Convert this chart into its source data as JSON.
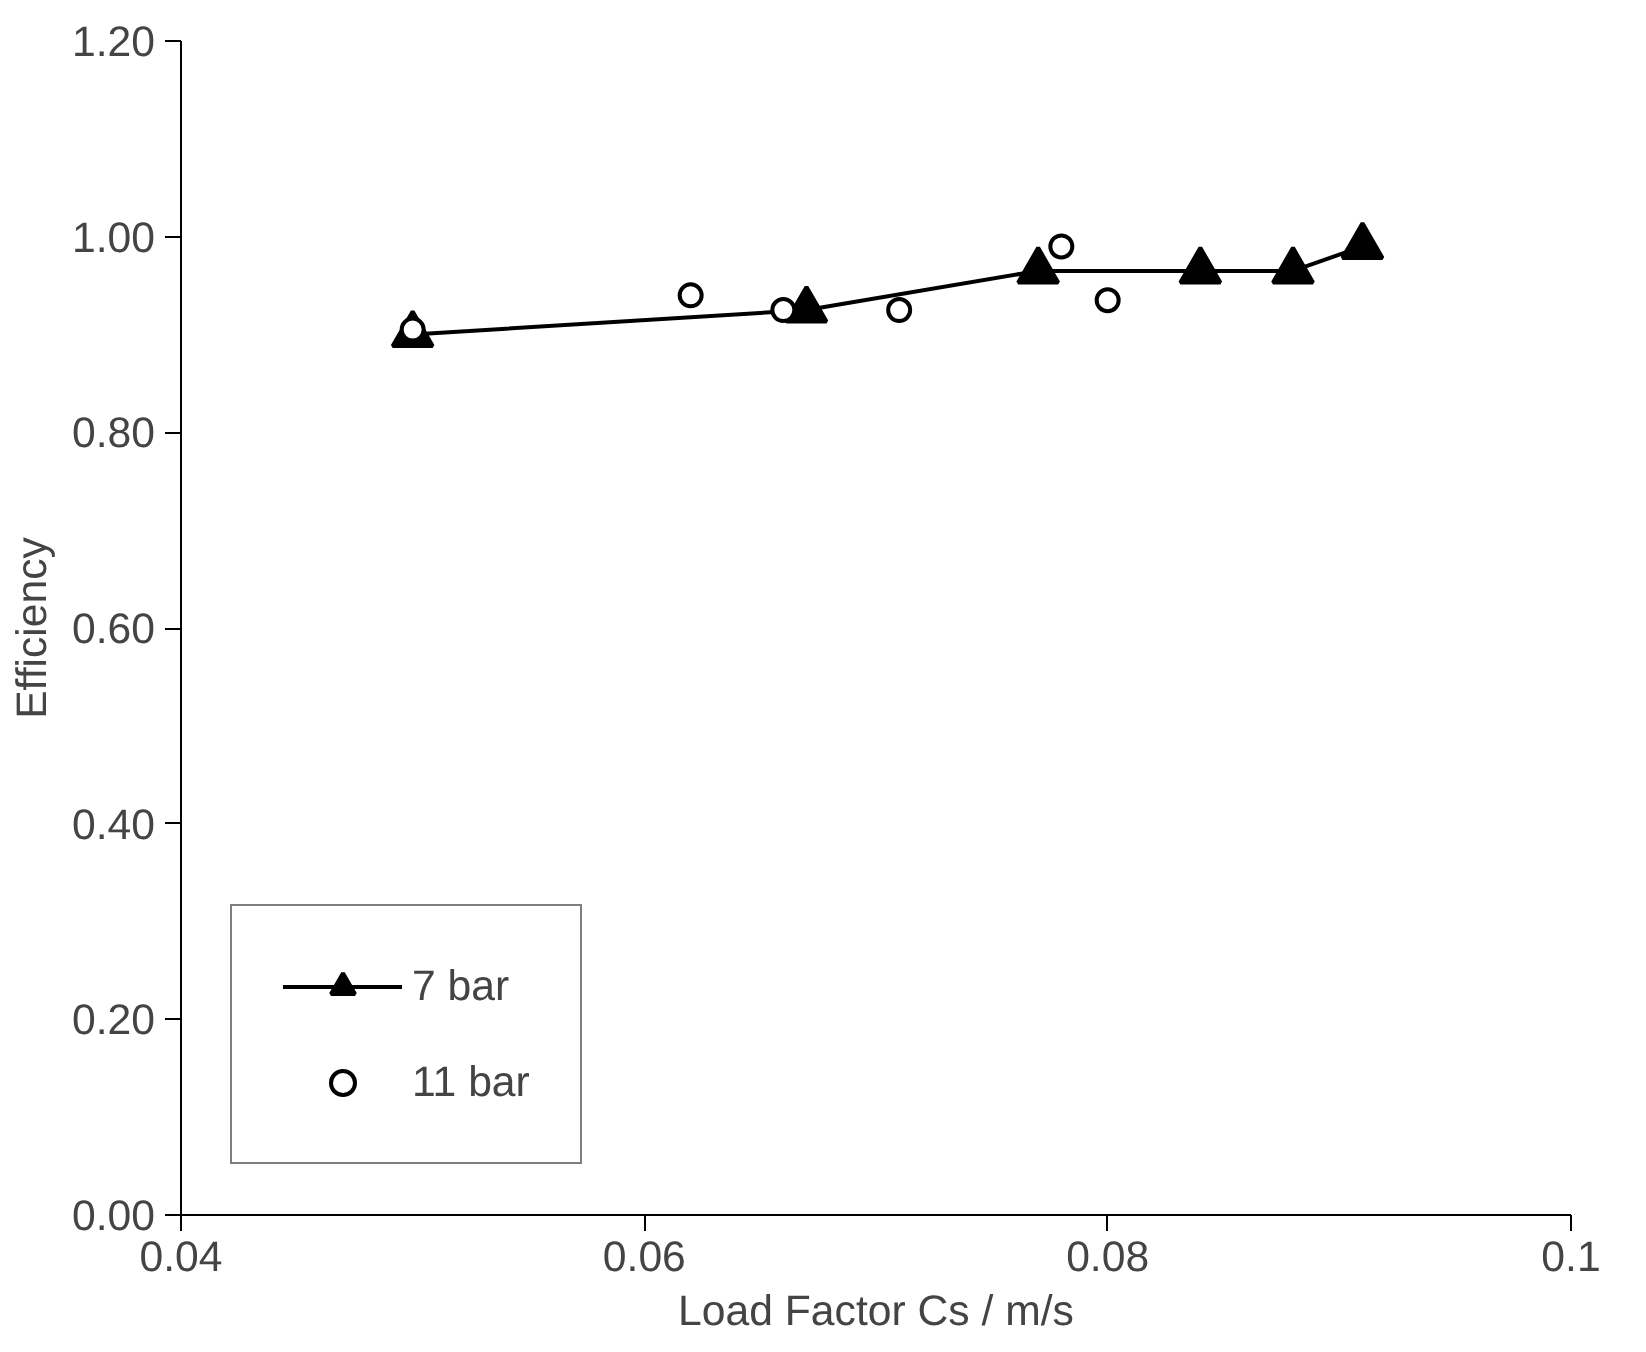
{
  "chart_data": {
    "type": "line",
    "xlabel": "Load Factor Cs / m/s",
    "ylabel": "Efficiency",
    "xlim": [
      0.04,
      0.1
    ],
    "xticks": [
      {
        "value": 0.04,
        "label": "0.04"
      },
      {
        "value": 0.06,
        "label": "0.06"
      },
      {
        "value": 0.08,
        "label": "0.08"
      },
      {
        "value": 0.1,
        "label": "0.1"
      }
    ],
    "ylim": [
      0,
      1.2
    ],
    "yticks": [
      {
        "value": 0,
        "label": "0.00"
      },
      {
        "value": 0.2,
        "label": "0.20"
      },
      {
        "value": 0.4,
        "label": "0.40"
      },
      {
        "value": 0.6,
        "label": "0.60"
      },
      {
        "value": 0.8,
        "label": "0.80"
      },
      {
        "value": 1.0,
        "label": "1.00"
      },
      {
        "value": 1.2,
        "label": "1.20"
      }
    ],
    "grid": false,
    "legend": "bottom left",
    "series": [
      {
        "name": "7 bar",
        "color": "#000000",
        "marker": "triangle",
        "x": [
          0.05,
          0.067,
          0.077,
          0.084,
          0.088,
          0.091
        ],
        "values": [
          0.9,
          0.925,
          0.965,
          0.965,
          0.965,
          0.99
        ]
      },
      {
        "name": "11 bar",
        "type": "scatter",
        "color": "#000000",
        "marker": "circle",
        "x": [
          0.05,
          0.062,
          0.066,
          0.071,
          0.078,
          0.08
        ],
        "values": [
          0.905,
          0.94,
          0.925,
          0.925,
          0.99,
          0.935
        ]
      }
    ]
  }
}
